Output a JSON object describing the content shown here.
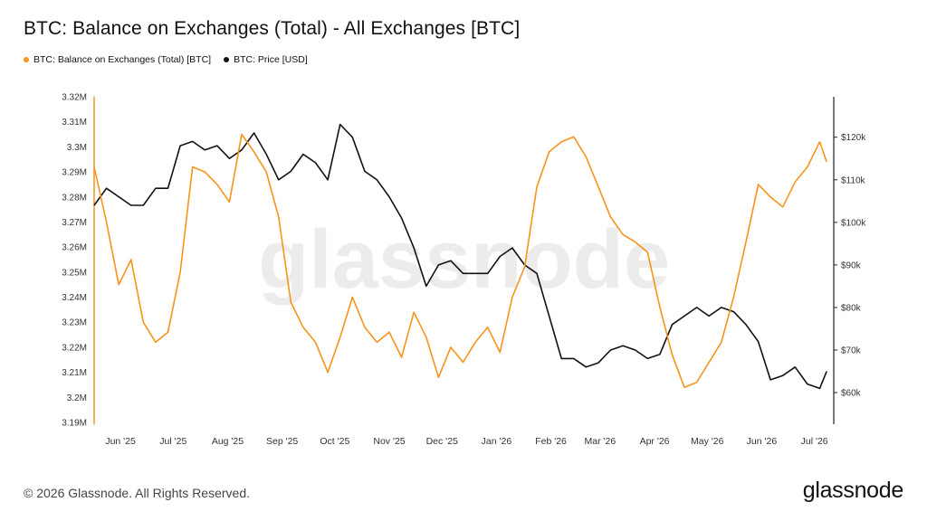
{
  "title": "BTC: Balance on Exchanges (Total) - All Exchanges [BTC]",
  "footer": "© 2026 Glassnode. All Rights Reserved.",
  "brand": "glassnode",
  "watermark": "glassnode",
  "colors": {
    "balance": "#f7931a",
    "price": "#111111",
    "axis": "#222222",
    "watermark": "#ececec"
  },
  "chart_data": {
    "type": "line",
    "legend_position": "top-left",
    "grid": false,
    "x": [
      "2025-05-17",
      "2025-05-24",
      "2025-05-31",
      "2025-06-07",
      "2025-06-14",
      "2025-06-21",
      "2025-06-28",
      "2025-07-05",
      "2025-07-12",
      "2025-07-19",
      "2025-07-26",
      "2025-08-02",
      "2025-08-09",
      "2025-08-16",
      "2025-08-23",
      "2025-08-30",
      "2025-09-06",
      "2025-09-13",
      "2025-09-20",
      "2025-09-27",
      "2025-10-04",
      "2025-10-11",
      "2025-10-18",
      "2025-10-25",
      "2025-11-01",
      "2025-11-08",
      "2025-11-15",
      "2025-11-22",
      "2025-11-29",
      "2025-12-06",
      "2025-12-13",
      "2025-12-20",
      "2025-12-27",
      "2026-01-03",
      "2026-01-10",
      "2026-01-17",
      "2026-01-24",
      "2026-01-31",
      "2026-02-07",
      "2026-02-14",
      "2026-02-21",
      "2026-02-28",
      "2026-03-07",
      "2026-03-14",
      "2026-03-21",
      "2026-03-28",
      "2026-04-04",
      "2026-04-11",
      "2026-04-18",
      "2026-04-25",
      "2026-05-02",
      "2026-05-09",
      "2026-05-16",
      "2026-05-23",
      "2026-05-30",
      "2026-06-06",
      "2026-06-13",
      "2026-06-20",
      "2026-06-27",
      "2026-07-04",
      "2026-07-08"
    ],
    "x_ticks": [
      "Jun '25",
      "Jul '25",
      "Aug '25",
      "Sep '25",
      "Oct '25",
      "Nov '25",
      "Dec '25",
      "Jan '26",
      "Feb '26",
      "Mar '26",
      "Apr '26",
      "May '26",
      "Jun '26",
      "Jul '26"
    ],
    "x_tick_dates": [
      "2025-06-01",
      "2025-07-01",
      "2025-08-01",
      "2025-09-01",
      "2025-10-01",
      "2025-11-01",
      "2025-12-01",
      "2026-01-01",
      "2026-02-01",
      "2026-03-01",
      "2026-04-01",
      "2026-05-01",
      "2026-06-01",
      "2026-07-01"
    ],
    "x_range": [
      "2025-05-17",
      "2026-07-12"
    ],
    "y_left": {
      "ticks": [
        "3.32M",
        "3.31M",
        "3.3M",
        "3.29M",
        "3.28M",
        "3.27M",
        "3.26M",
        "3.25M",
        "3.24M",
        "3.23M",
        "3.22M",
        "3.21M",
        "3.2M",
        "3.19M"
      ],
      "range": [
        3190000,
        3320000
      ]
    },
    "y_right": {
      "ticks": [
        "$120k",
        "$110k",
        "$100k",
        "$90k",
        "$80k",
        "$70k",
        "$60k"
      ],
      "range": [
        53000,
        129500
      ]
    },
    "series": [
      {
        "name": "BTC: Balance on Exchanges (Total) [BTC]",
        "axis": "left",
        "color": "#f7931a",
        "values": [
          3292000,
          3270000,
          3245000,
          3255000,
          3230000,
          3222000,
          3226000,
          3250000,
          3292000,
          3290000,
          3285000,
          3278000,
          3305000,
          3298000,
          3290000,
          3272000,
          3238000,
          3228000,
          3222000,
          3210000,
          3224000,
          3240000,
          3228000,
          3222000,
          3226000,
          3216000,
          3234000,
          3224000,
          3208000,
          3220000,
          3214000,
          3222000,
          3228000,
          3218000,
          3240000,
          3252000,
          3284000,
          3298000,
          3302000,
          3304000,
          3296000,
          3284000,
          3272000,
          3265000,
          3262000,
          3258000,
          3236000,
          3217000,
          3204000,
          3206000,
          3214000,
          3222000,
          3240000,
          3262000,
          3285000,
          3280000,
          3276000,
          3286000,
          3292000,
          3302000,
          3294000
        ]
      },
      {
        "name": "BTC: Price [USD]",
        "axis": "right",
        "color": "#111111",
        "values": [
          104000,
          108000,
          106000,
          104000,
          104000,
          108000,
          108000,
          118000,
          119000,
          117000,
          118000,
          115000,
          117000,
          121000,
          116000,
          110000,
          112000,
          116000,
          114000,
          110000,
          123000,
          120000,
          112000,
          110000,
          106000,
          101000,
          94000,
          85000,
          90000,
          91000,
          88000,
          88000,
          88000,
          92000,
          94000,
          90000,
          88000,
          78000,
          68000,
          68000,
          66000,
          67000,
          70000,
          71000,
          70000,
          68000,
          69000,
          76000,
          78000,
          80000,
          78000,
          80000,
          79000,
          76000,
          72000,
          63000,
          64000,
          66000,
          62000,
          61000,
          65000
        ]
      }
    ]
  }
}
